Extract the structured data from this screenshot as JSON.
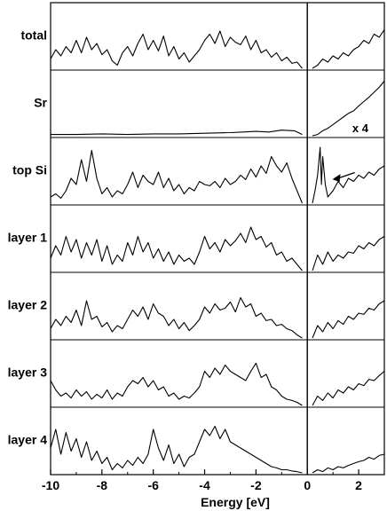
{
  "chart_data": {
    "type": "line",
    "xlabel": "Energy [eV]",
    "xlim": [
      -10,
      3
    ],
    "xticks": [
      -10,
      -8,
      -6,
      -4,
      -2,
      0,
      2
    ],
    "xtick_labels": [
      "-10",
      "-8",
      "-6",
      "-4",
      "-2",
      "0",
      "2"
    ],
    "fermi_level": 0,
    "grid": false,
    "panels": [
      {
        "name": "total",
        "x": [
          -10.0,
          -9.8,
          -9.6,
          -9.4,
          -9.2,
          -9.0,
          -8.8,
          -8.6,
          -8.4,
          -8.2,
          -8.0,
          -7.8,
          -7.6,
          -7.4,
          -7.2,
          -7.0,
          -6.8,
          -6.6,
          -6.4,
          -6.2,
          -6.0,
          -5.8,
          -5.6,
          -5.4,
          -5.2,
          -5.0,
          -4.8,
          -4.6,
          -4.4,
          -4.2,
          -4.0,
          -3.8,
          -3.6,
          -3.4,
          -3.2,
          -3.0,
          -2.8,
          -2.6,
          -2.4,
          -2.2,
          -2.0,
          -1.8,
          -1.6,
          -1.4,
          -1.2,
          -1.0,
          -0.8,
          -0.6,
          -0.4,
          -0.2,
          0.2,
          0.4,
          0.6,
          0.8,
          1.0,
          1.2,
          1.4,
          1.6,
          1.8,
          2.0,
          2.2,
          2.4,
          2.6,
          2.8,
          3.0
        ],
        "y": [
          0.15,
          0.3,
          0.2,
          0.35,
          0.25,
          0.45,
          0.25,
          0.5,
          0.3,
          0.4,
          0.22,
          0.3,
          0.12,
          0.05,
          0.25,
          0.35,
          0.2,
          0.4,
          0.55,
          0.3,
          0.45,
          0.28,
          0.52,
          0.2,
          0.35,
          0.15,
          0.25,
          0.1,
          0.2,
          0.3,
          0.45,
          0.55,
          0.4,
          0.6,
          0.35,
          0.5,
          0.42,
          0.38,
          0.52,
          0.3,
          0.45,
          0.25,
          0.3,
          0.18,
          0.25,
          0.12,
          0.18,
          0.08,
          0.1,
          0.0,
          0.0,
          0.05,
          0.15,
          0.1,
          0.2,
          0.15,
          0.25,
          0.2,
          0.3,
          0.35,
          0.45,
          0.4,
          0.55,
          0.5,
          0.62
        ]
      },
      {
        "name": "Sr",
        "annotation": "x 4",
        "x": [
          -10.0,
          -9.0,
          -8.0,
          -7.0,
          -6.0,
          -5.0,
          -4.0,
          -3.0,
          -2.5,
          -2.0,
          -1.5,
          -1.0,
          -0.5,
          -0.2,
          0.2,
          0.4,
          0.6,
          0.8,
          1.0,
          1.2,
          1.4,
          1.6,
          1.8,
          2.0,
          2.2,
          2.4,
          2.6,
          2.8,
          3.0
        ],
        "y": [
          0.02,
          0.02,
          0.03,
          0.02,
          0.03,
          0.03,
          0.04,
          0.05,
          0.06,
          0.07,
          0.06,
          0.09,
          0.08,
          0.02,
          0.0,
          0.02,
          0.08,
          0.12,
          0.18,
          0.24,
          0.3,
          0.36,
          0.4,
          0.48,
          0.55,
          0.62,
          0.7,
          0.78,
          0.88
        ]
      },
      {
        "name": "top Si",
        "x": [
          -10.0,
          -9.8,
          -9.6,
          -9.4,
          -9.2,
          -9.0,
          -8.8,
          -8.6,
          -8.4,
          -8.2,
          -8.0,
          -7.8,
          -7.6,
          -7.4,
          -7.2,
          -7.0,
          -6.8,
          -6.6,
          -6.4,
          -6.2,
          -6.0,
          -5.8,
          -5.6,
          -5.4,
          -5.2,
          -5.0,
          -4.8,
          -4.6,
          -4.4,
          -4.2,
          -4.0,
          -3.8,
          -3.6,
          -3.4,
          -3.2,
          -3.0,
          -2.8,
          -2.6,
          -2.4,
          -2.2,
          -2.0,
          -1.8,
          -1.6,
          -1.4,
          -1.2,
          -1.0,
          -0.8,
          -0.6,
          -0.4,
          -0.2,
          0.2,
          0.3,
          0.4,
          0.5,
          0.55,
          0.6,
          0.7,
          0.8,
          0.9,
          1.0,
          1.2,
          1.4,
          1.6,
          1.8,
          2.0,
          2.2,
          2.4,
          2.6,
          2.8,
          3.0
        ],
        "y": [
          0.1,
          0.15,
          0.08,
          0.2,
          0.4,
          0.3,
          0.7,
          0.35,
          0.85,
          0.4,
          0.15,
          0.25,
          0.1,
          0.2,
          0.15,
          0.3,
          0.5,
          0.25,
          0.45,
          0.35,
          0.3,
          0.5,
          0.25,
          0.4,
          0.2,
          0.3,
          0.15,
          0.25,
          0.2,
          0.35,
          0.3,
          0.28,
          0.35,
          0.25,
          0.4,
          0.3,
          0.35,
          0.45,
          0.38,
          0.55,
          0.42,
          0.6,
          0.48,
          0.75,
          0.6,
          0.5,
          0.65,
          0.4,
          0.2,
          0.0,
          0.0,
          0.2,
          0.45,
          0.9,
          0.3,
          0.75,
          0.3,
          0.1,
          0.15,
          0.2,
          0.35,
          0.25,
          0.4,
          0.35,
          0.45,
          0.4,
          0.5,
          0.45,
          0.55,
          0.6
        ]
      },
      {
        "name": "layer 1",
        "x": [
          -10.0,
          -9.8,
          -9.6,
          -9.4,
          -9.2,
          -9.0,
          -8.8,
          -8.6,
          -8.4,
          -8.2,
          -8.0,
          -7.8,
          -7.6,
          -7.4,
          -7.2,
          -7.0,
          -6.8,
          -6.6,
          -6.4,
          -6.2,
          -6.0,
          -5.8,
          -5.6,
          -5.4,
          -5.2,
          -5.0,
          -4.8,
          -4.6,
          -4.4,
          -4.2,
          -4.0,
          -3.8,
          -3.6,
          -3.4,
          -3.2,
          -3.0,
          -2.8,
          -2.6,
          -2.4,
          -2.2,
          -2.0,
          -1.8,
          -1.6,
          -1.4,
          -1.2,
          -1.0,
          -0.8,
          -0.6,
          -0.4,
          -0.2,
          0.2,
          0.4,
          0.6,
          0.8,
          1.0,
          1.2,
          1.4,
          1.6,
          1.8,
          2.0,
          2.2,
          2.4,
          2.6,
          2.8,
          3.0
        ],
        "y": [
          0.2,
          0.4,
          0.25,
          0.55,
          0.3,
          0.5,
          0.2,
          0.45,
          0.25,
          0.5,
          0.15,
          0.4,
          0.1,
          0.25,
          0.15,
          0.45,
          0.25,
          0.55,
          0.3,
          0.45,
          0.2,
          0.35,
          0.15,
          0.3,
          0.1,
          0.25,
          0.15,
          0.2,
          0.1,
          0.3,
          0.55,
          0.35,
          0.45,
          0.3,
          0.5,
          0.4,
          0.48,
          0.6,
          0.45,
          0.7,
          0.5,
          0.55,
          0.38,
          0.45,
          0.25,
          0.3,
          0.15,
          0.2,
          0.1,
          0.0,
          0.0,
          0.25,
          0.1,
          0.3,
          0.15,
          0.25,
          0.2,
          0.3,
          0.28,
          0.4,
          0.35,
          0.45,
          0.4,
          0.5,
          0.55
        ]
      },
      {
        "name": "layer 2",
        "x": [
          -10.0,
          -9.8,
          -9.6,
          -9.4,
          -9.2,
          -9.0,
          -8.8,
          -8.6,
          -8.4,
          -8.2,
          -8.0,
          -7.8,
          -7.6,
          -7.4,
          -7.2,
          -7.0,
          -6.8,
          -6.6,
          -6.4,
          -6.2,
          -6.0,
          -5.8,
          -5.6,
          -5.4,
          -5.2,
          -5.0,
          -4.8,
          -4.6,
          -4.4,
          -4.2,
          -4.0,
          -3.8,
          -3.6,
          -3.4,
          -3.2,
          -3.0,
          -2.8,
          -2.6,
          -2.4,
          -2.2,
          -2.0,
          -1.8,
          -1.6,
          -1.4,
          -1.2,
          -1.0,
          -0.8,
          -0.6,
          -0.4,
          -0.2,
          0.2,
          0.4,
          0.6,
          0.8,
          1.0,
          1.2,
          1.4,
          1.6,
          1.8,
          2.0,
          2.2,
          2.4,
          2.6,
          2.8,
          3.0
        ],
        "y": [
          0.15,
          0.3,
          0.2,
          0.35,
          0.25,
          0.45,
          0.2,
          0.6,
          0.3,
          0.35,
          0.18,
          0.25,
          0.1,
          0.2,
          0.15,
          0.3,
          0.45,
          0.35,
          0.5,
          0.3,
          0.55,
          0.4,
          0.35,
          0.2,
          0.3,
          0.15,
          0.25,
          0.12,
          0.2,
          0.3,
          0.5,
          0.4,
          0.55,
          0.45,
          0.48,
          0.58,
          0.42,
          0.65,
          0.5,
          0.55,
          0.35,
          0.4,
          0.28,
          0.3,
          0.2,
          0.22,
          0.15,
          0.12,
          0.05,
          0.0,
          0.0,
          0.2,
          0.1,
          0.25,
          0.15,
          0.28,
          0.22,
          0.35,
          0.3,
          0.4,
          0.38,
          0.48,
          0.45,
          0.55,
          0.6
        ]
      },
      {
        "name": "layer 3",
        "x": [
          -10.0,
          -9.8,
          -9.6,
          -9.4,
          -9.2,
          -9.0,
          -8.8,
          -8.6,
          -8.4,
          -8.2,
          -8.0,
          -7.8,
          -7.6,
          -7.4,
          -7.2,
          -7.0,
          -6.8,
          -6.6,
          -6.4,
          -6.2,
          -6.0,
          -5.8,
          -5.6,
          -5.4,
          -5.2,
          -5.0,
          -4.8,
          -4.6,
          -4.4,
          -4.2,
          -4.0,
          -3.8,
          -3.6,
          -3.4,
          -3.2,
          -3.0,
          -2.8,
          -2.6,
          -2.4,
          -2.2,
          -2.0,
          -1.8,
          -1.6,
          -1.4,
          -1.2,
          -1.0,
          -0.8,
          -0.6,
          -0.4,
          -0.2,
          0.2,
          0.4,
          0.6,
          0.8,
          1.0,
          1.2,
          1.4,
          1.6,
          1.8,
          2.0,
          2.2,
          2.4,
          2.6,
          2.8,
          3.0
        ],
        "y": [
          0.4,
          0.25,
          0.15,
          0.2,
          0.12,
          0.25,
          0.15,
          0.22,
          0.1,
          0.18,
          0.12,
          0.25,
          0.1,
          0.2,
          0.15,
          0.3,
          0.4,
          0.35,
          0.45,
          0.3,
          0.4,
          0.25,
          0.3,
          0.15,
          0.2,
          0.1,
          0.15,
          0.12,
          0.2,
          0.3,
          0.55,
          0.45,
          0.6,
          0.5,
          0.65,
          0.55,
          0.5,
          0.45,
          0.4,
          0.55,
          0.68,
          0.45,
          0.5,
          0.3,
          0.25,
          0.15,
          0.1,
          0.08,
          0.05,
          0.0,
          0.0,
          0.15,
          0.08,
          0.2,
          0.12,
          0.25,
          0.2,
          0.3,
          0.25,
          0.35,
          0.32,
          0.42,
          0.4,
          0.48,
          0.55
        ]
      },
      {
        "name": "layer 4",
        "x": [
          -10.0,
          -9.8,
          -9.6,
          -9.4,
          -9.2,
          -9.0,
          -8.8,
          -8.6,
          -8.4,
          -8.2,
          -8.0,
          -7.8,
          -7.6,
          -7.4,
          -7.2,
          -7.0,
          -6.8,
          -6.6,
          -6.4,
          -6.2,
          -6.0,
          -5.8,
          -5.6,
          -5.4,
          -5.2,
          -5.0,
          -4.8,
          -4.6,
          -4.4,
          -4.2,
          -4.0,
          -3.8,
          -3.6,
          -3.4,
          -3.2,
          -3.0,
          -2.8,
          -2.6,
          -2.4,
          -2.2,
          -2.0,
          -1.8,
          -1.6,
          -1.4,
          -1.2,
          -1.0,
          -0.8,
          -0.6,
          -0.4,
          -0.2,
          0.2,
          0.4,
          0.6,
          0.8,
          1.0,
          1.2,
          1.4,
          1.6,
          1.8,
          2.0,
          2.2,
          2.4,
          2.6,
          2.8,
          3.0
        ],
        "y": [
          0.4,
          0.7,
          0.3,
          0.65,
          0.35,
          0.55,
          0.25,
          0.5,
          0.2,
          0.35,
          0.15,
          0.25,
          0.05,
          0.15,
          0.08,
          0.2,
          0.12,
          0.25,
          0.15,
          0.3,
          0.7,
          0.4,
          0.2,
          0.45,
          0.15,
          0.3,
          0.1,
          0.25,
          0.3,
          0.5,
          0.7,
          0.6,
          0.75,
          0.55,
          0.7,
          0.5,
          0.45,
          0.4,
          0.35,
          0.3,
          0.25,
          0.2,
          0.15,
          0.1,
          0.08,
          0.05,
          0.05,
          0.03,
          0.02,
          0.0,
          0.0,
          0.05,
          0.02,
          0.08,
          0.05,
          0.1,
          0.08,
          0.12,
          0.15,
          0.18,
          0.2,
          0.25,
          0.22,
          0.28,
          0.3
        ]
      }
    ]
  }
}
